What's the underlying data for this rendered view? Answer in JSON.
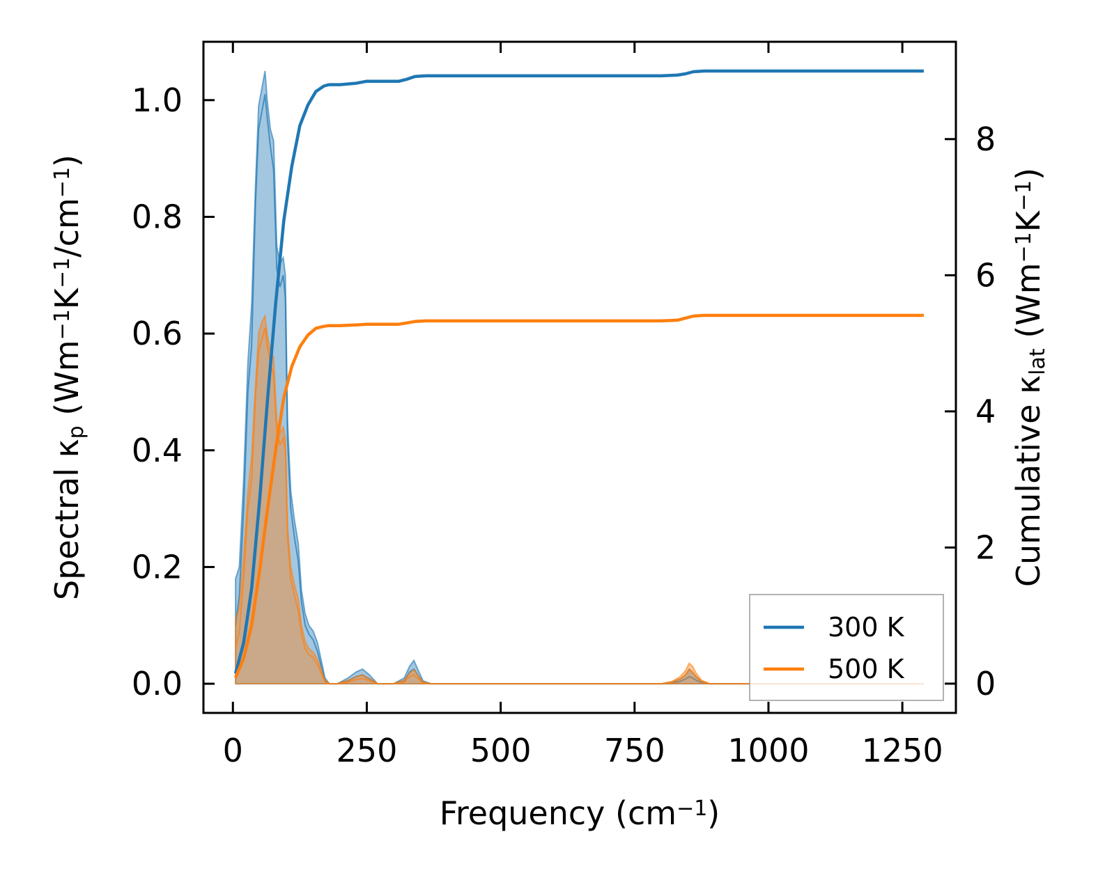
{
  "chart_data": {
    "type": "line",
    "title": "",
    "xlabel": {
      "base": "Frequency (cm",
      "sup": "−1",
      "end": ")"
    },
    "ylabel_left": {
      "parts": [
        {
          "t": "Spectral κ"
        },
        {
          "t": "p",
          "sub": true
        },
        {
          "t": " (Wm"
        },
        {
          "t": "−1",
          "sup": true
        },
        {
          "t": "K"
        },
        {
          "t": "−1",
          "sup": true
        },
        {
          "t": "/cm"
        },
        {
          "t": "−1",
          "sup": true
        },
        {
          "t": ")"
        }
      ]
    },
    "ylabel_right": {
      "parts": [
        {
          "t": "Cumulative κ"
        },
        {
          "t": "lat",
          "sub": true
        },
        {
          "t": " (Wm"
        },
        {
          "t": "−1",
          "sup": true
        },
        {
          "t": "K"
        },
        {
          "t": "−1",
          "sup": true
        },
        {
          "t": ")"
        }
      ]
    },
    "xlim": [
      -55,
      1350
    ],
    "ylim_left": [
      -0.05,
      1.1
    ],
    "ylim_right": [
      -0.43,
      9.43
    ],
    "x_ticks": [
      0,
      250,
      500,
      750,
      1000,
      1250
    ],
    "x_tick_labels": [
      "0",
      "250",
      "500",
      "750",
      "1000",
      "1250"
    ],
    "y_left_ticks": [
      0.0,
      0.2,
      0.4,
      0.6,
      0.8,
      1.0
    ],
    "y_left_tick_labels": [
      "0.0",
      "0.2",
      "0.4",
      "0.6",
      "0.8",
      "1.0"
    ],
    "y_right_ticks": [
      0,
      2,
      4,
      6,
      8
    ],
    "y_right_tick_labels": [
      "0",
      "2",
      "4",
      "6",
      "8"
    ],
    "legend": {
      "position": "lower right",
      "entries": [
        "300 K",
        "500 K"
      ]
    },
    "series": [
      {
        "name": "300 K",
        "color": "#1f77b4",
        "spectral": {
          "x": [
            5,
            12,
            20,
            28,
            35,
            42,
            48,
            54,
            60,
            64,
            70,
            76,
            82,
            88,
            94,
            98,
            102,
            108,
            115,
            122,
            128,
            135,
            142,
            150,
            158,
            165,
            172,
            180,
            195,
            215,
            230,
            242,
            255,
            270,
            300,
            320,
            330,
            338,
            345,
            355,
            370,
            400,
            600,
            800,
            820,
            835,
            845,
            852,
            858,
            865,
            875,
            890,
            950,
            1050,
            1150,
            1290
          ],
          "upper": [
            0.18,
            0.2,
            0.35,
            0.55,
            0.65,
            0.85,
            0.99,
            1.02,
            1.05,
            1.0,
            0.95,
            0.93,
            0.75,
            0.72,
            0.73,
            0.7,
            0.45,
            0.33,
            0.28,
            0.24,
            0.16,
            0.12,
            0.1,
            0.09,
            0.07,
            0.04,
            0.01,
            0.0,
            0.0,
            0.01,
            0.02,
            0.025,
            0.015,
            0.0,
            0.0,
            0.01,
            0.03,
            0.04,
            0.025,
            0.005,
            0.0,
            0.0,
            0.0,
            0.0,
            0.003,
            0.008,
            0.015,
            0.025,
            0.02,
            0.012,
            0.004,
            0.0,
            0.0,
            0.0,
            0.0,
            0.0
          ],
          "lower": [
            0.1,
            0.15,
            0.3,
            0.5,
            0.58,
            0.82,
            0.95,
            0.98,
            1.01,
            0.97,
            0.92,
            0.88,
            0.71,
            0.68,
            0.7,
            0.66,
            0.42,
            0.3,
            0.25,
            0.21,
            0.14,
            0.1,
            0.085,
            0.075,
            0.055,
            0.03,
            0.005,
            0.0,
            0.0,
            0.005,
            0.012,
            0.015,
            0.008,
            0.0,
            0.0,
            0.005,
            0.02,
            0.025,
            0.015,
            0.002,
            0.0,
            0.0,
            0.0,
            0.0,
            0.001,
            0.004,
            0.008,
            0.012,
            0.01,
            0.006,
            0.002,
            0.0,
            0.0,
            0.0,
            0.0,
            0.0
          ]
        },
        "cumulative": {
          "x": [
            5,
            20,
            35,
            50,
            65,
            80,
            95,
            110,
            125,
            140,
            155,
            170,
            180,
            200,
            230,
            250,
            280,
            310,
            325,
            340,
            360,
            400,
            600,
            800,
            830,
            845,
            860,
            880,
            950,
            1100,
            1290
          ],
          "y": [
            0.15,
            0.6,
            1.4,
            2.7,
            4.2,
            5.6,
            6.8,
            7.6,
            8.2,
            8.5,
            8.7,
            8.78,
            8.8,
            8.8,
            8.82,
            8.85,
            8.85,
            8.85,
            8.88,
            8.92,
            8.93,
            8.93,
            8.93,
            8.93,
            8.94,
            8.96,
            8.99,
            9.0,
            9.0,
            9.0,
            9.0
          ]
        }
      },
      {
        "name": "500 K",
        "color": "#ff7f0e",
        "spectral": {
          "x": [
            5,
            12,
            20,
            28,
            35,
            42,
            48,
            54,
            60,
            64,
            70,
            76,
            82,
            88,
            94,
            98,
            102,
            108,
            115,
            122,
            128,
            135,
            142,
            150,
            158,
            165,
            172,
            180,
            195,
            215,
            230,
            242,
            255,
            270,
            300,
            320,
            330,
            338,
            345,
            355,
            370,
            400,
            600,
            800,
            820,
            835,
            845,
            852,
            858,
            865,
            875,
            890,
            950,
            1050,
            1150,
            1290
          ],
          "upper": [
            0.11,
            0.13,
            0.22,
            0.33,
            0.39,
            0.51,
            0.6,
            0.62,
            0.63,
            0.6,
            0.57,
            0.56,
            0.45,
            0.43,
            0.44,
            0.42,
            0.27,
            0.2,
            0.17,
            0.145,
            0.1,
            0.073,
            0.06,
            0.054,
            0.042,
            0.024,
            0.006,
            0.0,
            0.0,
            0.006,
            0.012,
            0.015,
            0.009,
            0.0,
            0.0,
            0.006,
            0.018,
            0.024,
            0.015,
            0.003,
            0.0,
            0.0,
            0.0,
            0.0,
            0.004,
            0.012,
            0.022,
            0.035,
            0.03,
            0.018,
            0.006,
            0.0,
            0.0,
            0.0,
            0.0,
            0.0
          ],
          "lower": [
            0.06,
            0.09,
            0.18,
            0.3,
            0.35,
            0.49,
            0.57,
            0.59,
            0.61,
            0.58,
            0.55,
            0.53,
            0.43,
            0.41,
            0.42,
            0.4,
            0.25,
            0.18,
            0.15,
            0.125,
            0.085,
            0.06,
            0.05,
            0.045,
            0.033,
            0.018,
            0.003,
            0.0,
            0.0,
            0.003,
            0.007,
            0.009,
            0.005,
            0.0,
            0.0,
            0.003,
            0.012,
            0.015,
            0.009,
            0.001,
            0.0,
            0.0,
            0.0,
            0.0,
            0.002,
            0.008,
            0.015,
            0.024,
            0.02,
            0.012,
            0.004,
            0.0,
            0.0,
            0.0,
            0.0,
            0.0
          ]
        },
        "cumulative": {
          "x": [
            5,
            20,
            35,
            50,
            65,
            80,
            95,
            110,
            125,
            140,
            155,
            170,
            180,
            200,
            230,
            250,
            280,
            310,
            325,
            340,
            360,
            400,
            600,
            800,
            830,
            845,
            860,
            880,
            950,
            1100,
            1290
          ],
          "y": [
            0.09,
            0.37,
            0.86,
            1.66,
            2.58,
            3.44,
            4.2,
            4.66,
            4.95,
            5.12,
            5.22,
            5.25,
            5.26,
            5.26,
            5.27,
            5.28,
            5.28,
            5.28,
            5.3,
            5.32,
            5.33,
            5.33,
            5.33,
            5.33,
            5.34,
            5.37,
            5.4,
            5.41,
            5.41,
            5.41,
            5.41
          ]
        }
      }
    ]
  }
}
